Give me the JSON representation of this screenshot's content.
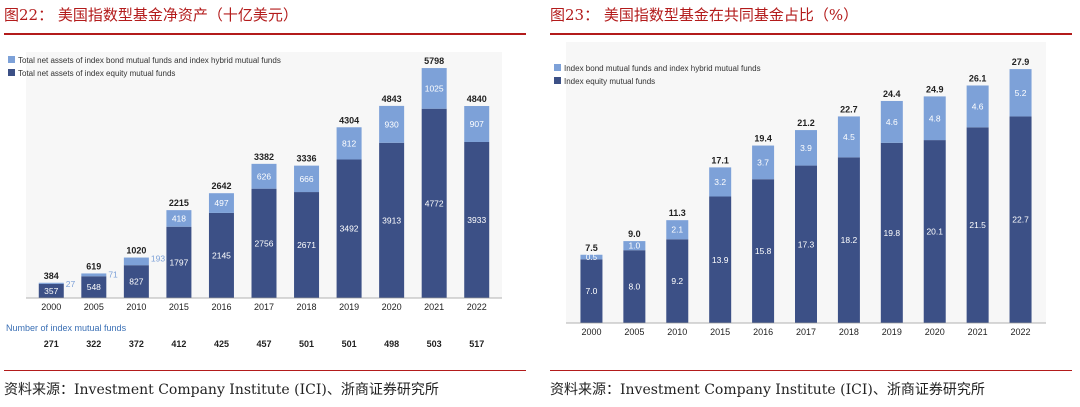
{
  "colors": {
    "accent": "#b31b1b",
    "bond": "#7da1d8",
    "equity": "#3c5086"
  },
  "left": {
    "title": "图22：  美国指数型基金净资产（十亿美元）",
    "source": "资料来源：Investment Company Institute (ICI)、浙商证券研究所",
    "chart_data": {
      "type": "bar",
      "stacked": true,
      "categories": [
        "2000",
        "2005",
        "2010",
        "2015",
        "2016",
        "2017",
        "2018",
        "2019",
        "2020",
        "2021",
        "2022"
      ],
      "series": [
        {
          "name": "Total net assets of index equity mutual funds",
          "values": [
            357,
            548,
            827,
            1797,
            2145,
            2756,
            2671,
            3492,
            3913,
            4772,
            3933
          ]
        },
        {
          "name": "Total net assets of index bond mutual funds and index hybrid mutual funds",
          "values": [
            27,
            71,
            193,
            418,
            497,
            626,
            666,
            812,
            930,
            1025,
            907
          ]
        }
      ],
      "totals": [
        384,
        619,
        1020,
        2215,
        2642,
        3382,
        3336,
        4304,
        4843,
        5798,
        4840
      ],
      "table_label": "Number of index mutual funds",
      "table_values": [
        271,
        322,
        372,
        412,
        425,
        457,
        501,
        501,
        498,
        503,
        517
      ],
      "ylim": [
        0,
        6000
      ],
      "legend_position": "top-left"
    }
  },
  "right": {
    "title": "图23：  美国指数型基金在共同基金占比（%）",
    "source": "资料来源：Investment Company Institute (ICI)、浙商证券研究所",
    "chart_data": {
      "type": "bar",
      "stacked": true,
      "categories": [
        "2000",
        "2005",
        "2010",
        "2015",
        "2016",
        "2017",
        "2018",
        "2019",
        "2020",
        "2021",
        "2022"
      ],
      "series": [
        {
          "name": "Index equity mutual funds",
          "values": [
            "7.0",
            "8.0",
            "9.2",
            "13.9",
            "15.8",
            "17.3",
            "18.2",
            "19.8",
            "20.1",
            "21.5",
            "22.7"
          ]
        },
        {
          "name": "Index bond mutual funds and index hybrid mutual funds",
          "values": [
            "0.5",
            "1.0",
            "2.1",
            "3.2",
            "3.7",
            "3.9",
            "4.5",
            "4.6",
            "4.8",
            "4.6",
            "5.2"
          ]
        }
      ],
      "totals": [
        "7.5",
        "9.0",
        "11.3",
        "17.1",
        "19.4",
        "21.2",
        "22.7",
        "24.4",
        "24.9",
        "26.1",
        "27.9"
      ],
      "ylim": [
        0,
        30
      ],
      "legend_position": "top-left"
    }
  }
}
